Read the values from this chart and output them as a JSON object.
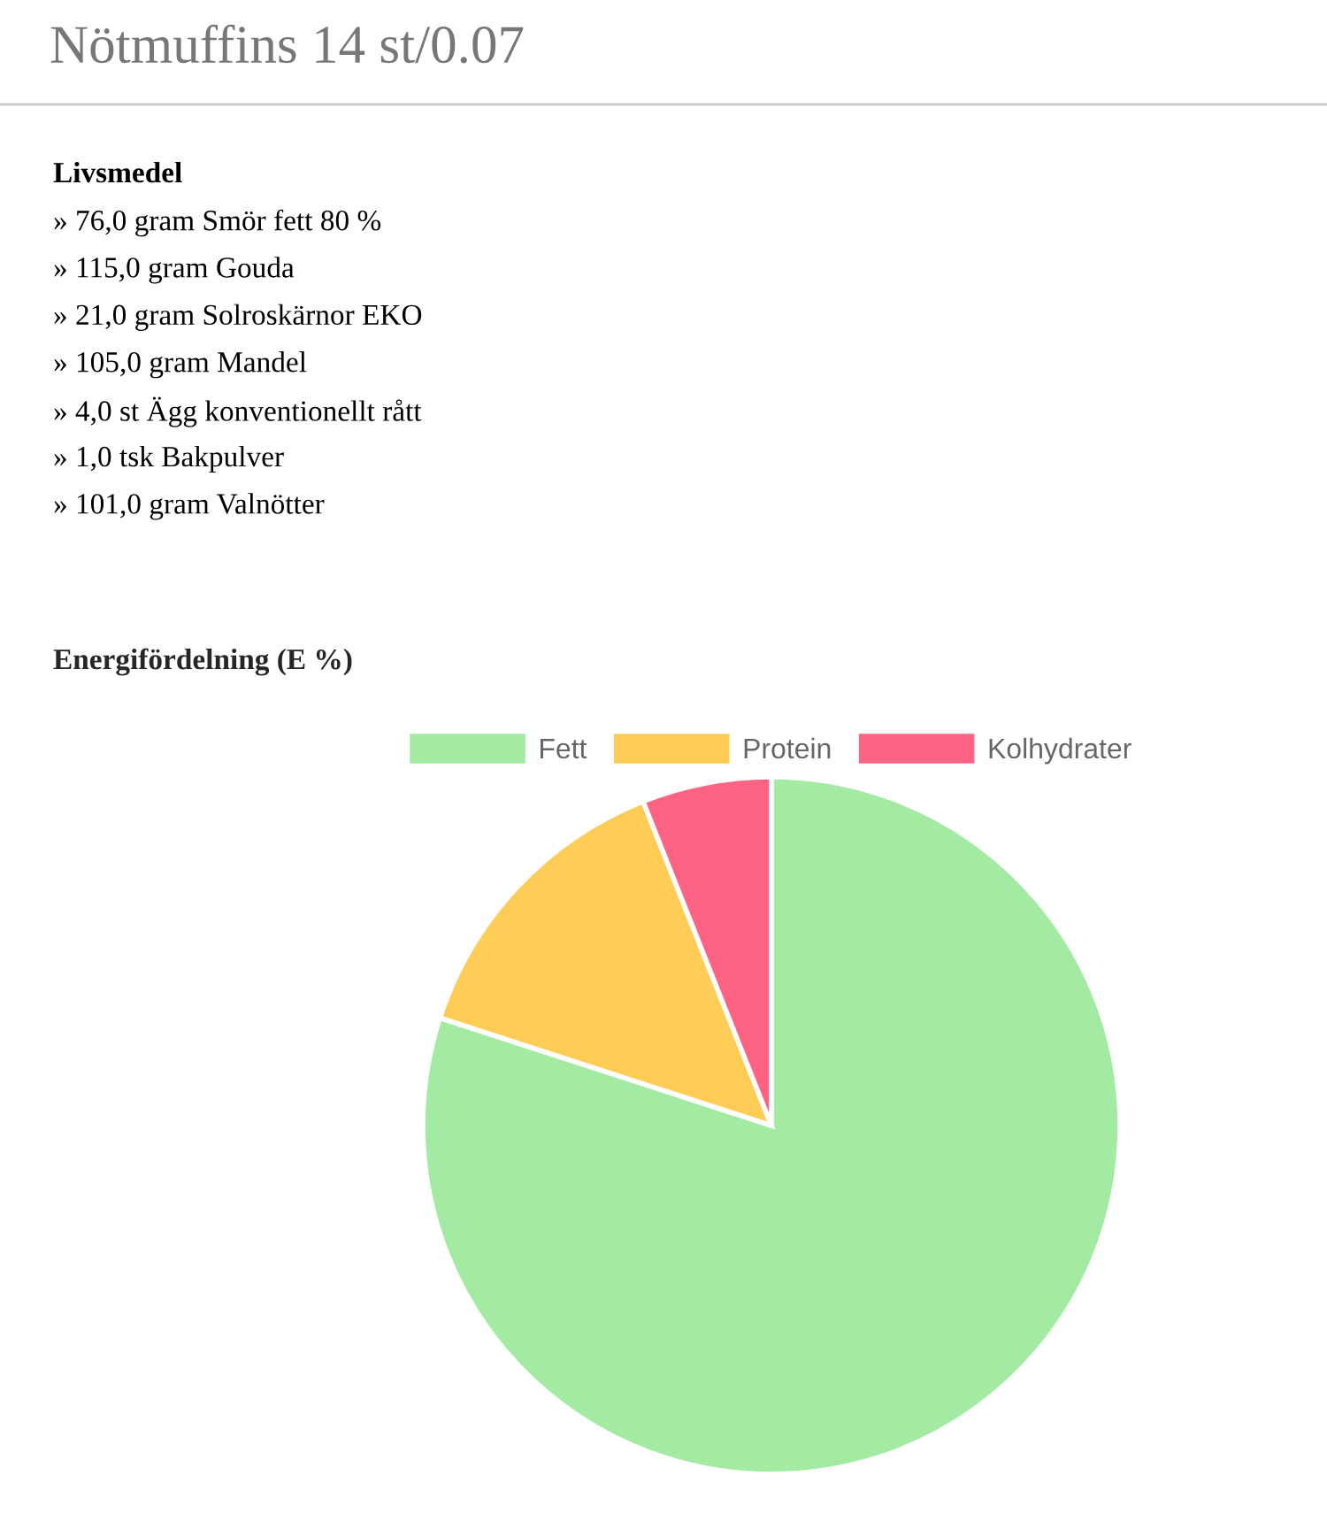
{
  "chart_data": {
    "type": "pie",
    "title": "Nötmuffins 14 st/0.07",
    "subtitle": "Energifördelning (E %)",
    "annotations": [
      "Livsmedel",
      "» 76,0 gram Smör fett 80 %",
      "» 115,0 gram Gouda",
      "» 21,0 gram Solroskärnor EKO",
      "» 105,0 gram Mandel",
      "» 4,0 st Ägg konventionellt rått",
      "» 1,0 tsk Bakpulver",
      "» 101,0 gram Valnötter"
    ],
    "categories": [
      "Fett",
      "Protein",
      "Kolhydrater"
    ],
    "values": [
      80,
      14,
      6
    ],
    "colors": [
      "#a3eba3",
      "#ffcd56",
      "#ff6384"
    ],
    "legend": "top"
  }
}
